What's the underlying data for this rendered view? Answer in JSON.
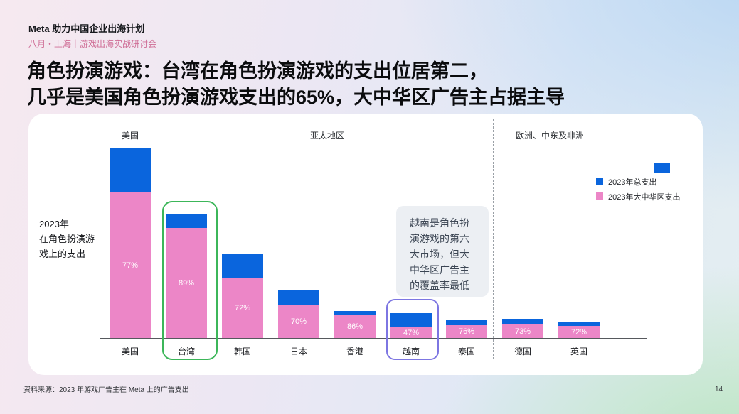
{
  "header": {
    "program": "Meta 助力中国企业出海计划",
    "event": "八月・上海｜游戏出海实战研讨会"
  },
  "title": "角色扮演游戏：台湾在角色扮演游戏的支出位居第二，\n几乎是美国角色扮演游戏支出的65%，大中华区广告主占据主导",
  "chart_data": {
    "type": "bar",
    "subtype": "overlay-stacked",
    "title": "2023年\n在角色扮演游戏上的支出",
    "categories": [
      "美国",
      "台湾",
      "韩国",
      "日本",
      "香港",
      "越南",
      "泰国",
      "德国",
      "英国"
    ],
    "region_groups": [
      {
        "label": "美国",
        "categories": [
          "美国"
        ]
      },
      {
        "label": "亚太地区",
        "categories": [
          "台湾",
          "韩国",
          "日本",
          "香港",
          "越南",
          "泰国"
        ]
      },
      {
        "label": "欧洲、中东及非洲",
        "categories": [
          "德国",
          "英国"
        ]
      }
    ],
    "series": [
      {
        "name": "2023年总支出",
        "color": "#0a65dd",
        "values_rel_to_us_pct": [
          100,
          65,
          44,
          25,
          14,
          13,
          9.5,
          10,
          8.7
        ]
      },
      {
        "name": "2023年大中华区支出",
        "color": "#ec86c7",
        "share_of_total_pct": [
          77,
          89,
          72,
          70,
          86,
          47,
          76,
          73,
          72
        ]
      }
    ],
    "bar_labels": [
      "77%",
      "89%",
      "72%",
      "70%",
      "86%",
      "47%",
      "76%",
      "73%",
      "72%"
    ],
    "highlights": [
      {
        "category": "台湾",
        "color": "#3cb659"
      },
      {
        "category": "越南",
        "color": "#7d76e2"
      }
    ],
    "legend_position": "right",
    "grid": false
  },
  "annotation": {
    "text": "越南是角色扮演游戏的第六大市场，但大中华区广告主的覆盖率最低"
  },
  "legend": {
    "items": [
      {
        "label": "2023年总支出",
        "color": "#0a65dd"
      },
      {
        "label": "2023年大中华区支出",
        "color": "#ec86c7"
      }
    ]
  },
  "footer": {
    "source": "资料来源：2023 年游戏广告主在 Meta 上的广告支出",
    "page": "14"
  }
}
